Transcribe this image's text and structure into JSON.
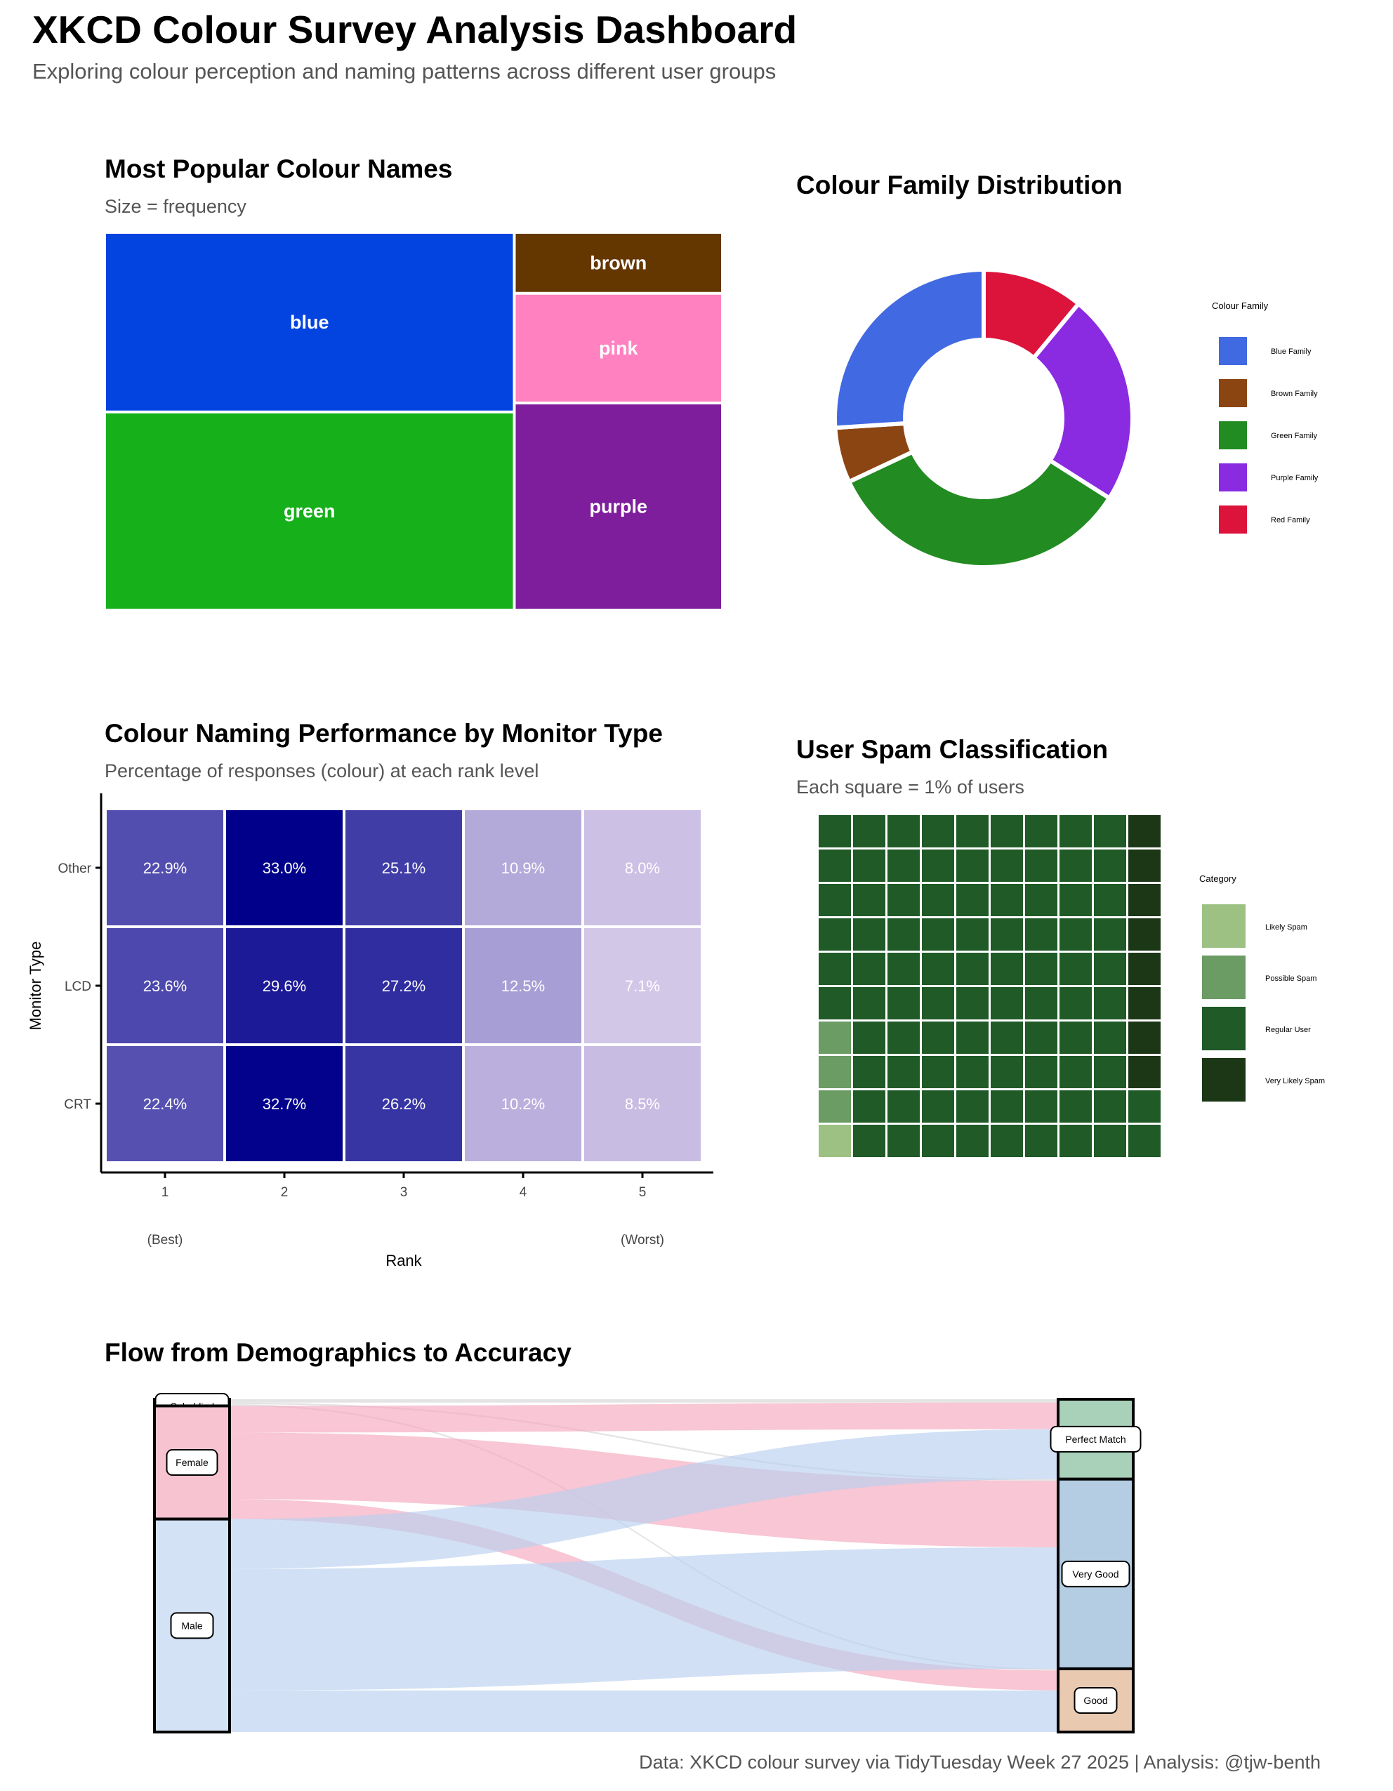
{
  "header": {
    "title": "XKCD Colour Survey Analysis Dashboard",
    "subtitle": "Exploring colour perception and naming patterns across different user groups"
  },
  "caption": "Data: XKCD colour survey via TidyTuesday Week 27 2025 | Analysis: @tjw-benth",
  "chart_data": [
    {
      "type": "treemap",
      "title": "Most Popular Colour Names",
      "subtitle": "Size = frequency",
      "items": [
        {
          "name": "blue",
          "value": 29,
          "color": "#0343df"
        },
        {
          "name": "green",
          "value": 32,
          "color": "#15b01a"
        },
        {
          "name": "brown",
          "value": 5,
          "color": "#653700"
        },
        {
          "name": "pink",
          "value": 9,
          "color": "#ff81c0"
        },
        {
          "name": "purple",
          "value": 17,
          "color": "#7e1e9c"
        }
      ]
    },
    {
      "type": "pie",
      "title": "Colour Family Distribution",
      "legend_title": "Colour Family",
      "slices": [
        {
          "name": "Red Family",
          "value": 11,
          "color": "#dc143c"
        },
        {
          "name": "Purple Family",
          "value": 23,
          "color": "#8a2be2"
        },
        {
          "name": "Green Family",
          "value": 34,
          "color": "#228b22"
        },
        {
          "name": "Brown Family",
          "value": 6,
          "color": "#8b4513"
        },
        {
          "name": "Blue Family",
          "value": 26,
          "color": "#4169e1"
        }
      ],
      "legend_order": [
        "Blue Family",
        "Brown Family",
        "Green Family",
        "Purple Family",
        "Red Family"
      ]
    },
    {
      "type": "heatmap",
      "title": "Colour Naming Performance by Monitor Type",
      "subtitle": "Percentage of responses (colour) at each rank level",
      "xlabel": "Rank",
      "ylabel": "Monitor Type",
      "x": [
        "1",
        "2",
        "3",
        "4",
        "5"
      ],
      "x_sublabels": [
        "(Best)",
        "",
        "",
        "",
        "(Worst)"
      ],
      "y": [
        "Other",
        "LCD",
        "CRT"
      ],
      "values": [
        [
          22.9,
          33.0,
          25.1,
          10.9,
          8.0
        ],
        [
          23.6,
          29.6,
          27.2,
          12.5,
          7.1
        ],
        [
          22.4,
          32.7,
          26.2,
          10.2,
          8.5
        ]
      ],
      "labels": [
        [
          "22.9%",
          "33.0%",
          "25.1%",
          "10.9%",
          "8.0%"
        ],
        [
          "23.6%",
          "29.6%",
          "27.2%",
          "12.5%",
          "7.1%"
        ],
        [
          "22.4%",
          "32.7%",
          "26.2%",
          "10.2%",
          "8.5%"
        ]
      ],
      "color_low": "#d3c7e8",
      "color_high": "#00008b",
      "value_range": [
        7.1,
        33.0
      ]
    },
    {
      "type": "waffle",
      "title": "User Spam Classification",
      "subtitle": "Each square = 1% of users",
      "legend_title": "Category",
      "categories": [
        {
          "name": "Likely Spam",
          "value": 1,
          "color": "#9dc183"
        },
        {
          "name": "Possible Spam",
          "value": 3,
          "color": "#6a9c64"
        },
        {
          "name": "Regular User",
          "value": 88,
          "color": "#1f5a27"
        },
        {
          "name": "Very Likely Spam",
          "value": 8,
          "color": "#1c3716"
        }
      ]
    },
    {
      "type": "sankey",
      "title": "Flow from Demographics to Accuracy",
      "sources": [
        {
          "name": "Colorblind",
          "value": 2,
          "color": "#e0e0e0"
        },
        {
          "name": "Female",
          "value": 34,
          "color": "#f7c3d0"
        },
        {
          "name": "Male",
          "value": 64,
          "color": "#d4e2f5"
        }
      ],
      "targets": [
        {
          "name": "Perfect Match",
          "value": 24,
          "color": "#a9d1b9"
        },
        {
          "name": "Very Good",
          "value": 57,
          "color": "#b4cde3"
        },
        {
          "name": "Good",
          "value": 19,
          "color": "#e9c9b0"
        }
      ],
      "flows": [
        {
          "source": "Colorblind",
          "target": "Perfect Match",
          "value": 1
        },
        {
          "source": "Colorblind",
          "target": "Very Good",
          "value": 0.5
        },
        {
          "source": "Colorblind",
          "target": "Good",
          "value": 0.5
        },
        {
          "source": "Female",
          "target": "Perfect Match",
          "value": 8
        },
        {
          "source": "Female",
          "target": "Very Good",
          "value": 20
        },
        {
          "source": "Female",
          "target": "Good",
          "value": 6
        },
        {
          "source": "Male",
          "target": "Perfect Match",
          "value": 15
        },
        {
          "source": "Male",
          "target": "Very Good",
          "value": 36.5
        },
        {
          "source": "Male",
          "target": "Good",
          "value": 12.5
        }
      ]
    }
  ]
}
